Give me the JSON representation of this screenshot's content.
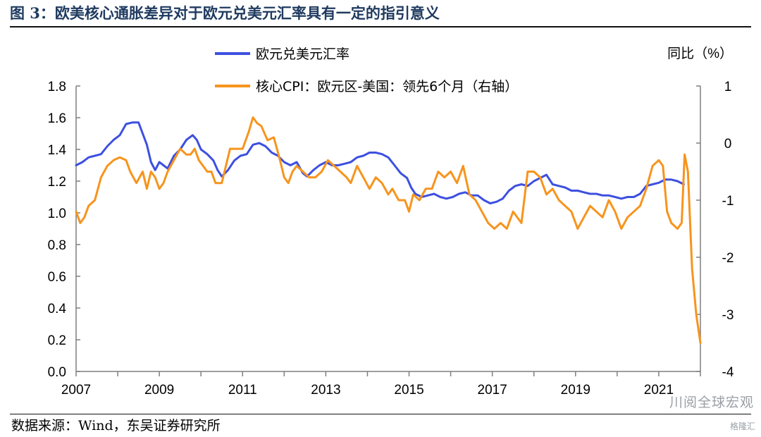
{
  "figure": {
    "title": "图 3：欧美核心通胀差异对于欧元兑美元汇率具有一定的指引意义",
    "source": "数据来源：Wind，东吴证券研究所",
    "watermark": "川阅全球宏观",
    "watermark_small": "格隆汇"
  },
  "chart_data": {
    "type": "line",
    "title": "",
    "xlabel": "",
    "ylabel": "",
    "y2label": "同比（%）",
    "xlim": [
      2007,
      2022
    ],
    "ylim": [
      0,
      1.8
    ],
    "y2lim": [
      -4,
      1
    ],
    "x_ticks": [
      "2007",
      "2009",
      "2011",
      "2013",
      "2015",
      "2017",
      "2019",
      "2021"
    ],
    "y_ticks": [
      "0.0",
      "0.2",
      "0.4",
      "0.6",
      "0.8",
      "1.0",
      "1.2",
      "1.4",
      "1.6",
      "1.8"
    ],
    "y2_ticks": [
      "-4",
      "-3",
      "-2",
      "-1",
      "0",
      "1"
    ],
    "legend_position": "top-center",
    "grid": false,
    "series": [
      {
        "name": "欧元兑美元汇率",
        "axis": "left",
        "color": "#3d50e0",
        "x": [
          2007.0,
          2007.15,
          2007.3,
          2007.45,
          2007.6,
          2007.75,
          2007.9,
          2008.05,
          2008.2,
          2008.35,
          2008.5,
          2008.6,
          2008.7,
          2008.8,
          2008.9,
          2009.0,
          2009.1,
          2009.2,
          2009.35,
          2009.5,
          2009.65,
          2009.8,
          2009.9,
          2010.0,
          2010.15,
          2010.3,
          2010.4,
          2010.5,
          2010.65,
          2010.8,
          2010.95,
          2011.1,
          2011.25,
          2011.4,
          2011.55,
          2011.7,
          2011.85,
          2012.0,
          2012.15,
          2012.3,
          2012.45,
          2012.55,
          2012.7,
          2012.85,
          2013.0,
          2013.15,
          2013.3,
          2013.45,
          2013.6,
          2013.75,
          2013.9,
          2014.05,
          2014.2,
          2014.35,
          2014.5,
          2014.65,
          2014.8,
          2014.95,
          2015.05,
          2015.15,
          2015.3,
          2015.45,
          2015.6,
          2015.75,
          2015.9,
          2016.05,
          2016.2,
          2016.35,
          2016.5,
          2016.65,
          2016.8,
          2016.95,
          2017.1,
          2017.25,
          2017.4,
          2017.55,
          2017.7,
          2017.85,
          2018.0,
          2018.15,
          2018.3,
          2018.45,
          2018.6,
          2018.75,
          2018.9,
          2019.05,
          2019.2,
          2019.35,
          2019.5,
          2019.65,
          2019.8,
          2019.95,
          2020.1,
          2020.25,
          2020.4,
          2020.55,
          2020.7,
          2020.85,
          2021.0,
          2021.15,
          2021.3,
          2021.45,
          2021.6
        ],
        "values": [
          1.3,
          1.32,
          1.35,
          1.36,
          1.37,
          1.42,
          1.46,
          1.49,
          1.56,
          1.57,
          1.57,
          1.5,
          1.43,
          1.32,
          1.27,
          1.32,
          1.3,
          1.28,
          1.36,
          1.4,
          1.46,
          1.49,
          1.46,
          1.4,
          1.37,
          1.33,
          1.27,
          1.23,
          1.27,
          1.33,
          1.36,
          1.37,
          1.43,
          1.44,
          1.42,
          1.38,
          1.36,
          1.32,
          1.3,
          1.32,
          1.25,
          1.23,
          1.27,
          1.3,
          1.32,
          1.3,
          1.3,
          1.31,
          1.32,
          1.35,
          1.36,
          1.38,
          1.38,
          1.37,
          1.35,
          1.3,
          1.25,
          1.22,
          1.16,
          1.12,
          1.1,
          1.11,
          1.12,
          1.1,
          1.09,
          1.1,
          1.12,
          1.13,
          1.11,
          1.11,
          1.08,
          1.06,
          1.07,
          1.09,
          1.14,
          1.17,
          1.18,
          1.17,
          1.2,
          1.22,
          1.24,
          1.18,
          1.17,
          1.16,
          1.14,
          1.14,
          1.13,
          1.12,
          1.12,
          1.11,
          1.11,
          1.1,
          1.09,
          1.1,
          1.1,
          1.12,
          1.17,
          1.18,
          1.19,
          1.21,
          1.21,
          1.2,
          1.18
        ]
      },
      {
        "name": "核心CPI：欧元区-美国：领先6个月（右轴）",
        "axis": "right",
        "color": "#f7941d",
        "x": [
          2007.0,
          2007.1,
          2007.2,
          2007.3,
          2007.45,
          2007.6,
          2007.75,
          2007.9,
          2008.05,
          2008.2,
          2008.3,
          2008.45,
          2008.6,
          2008.7,
          2008.8,
          2008.9,
          2009.0,
          2009.1,
          2009.2,
          2009.35,
          2009.5,
          2009.65,
          2009.75,
          2009.85,
          2009.95,
          2010.05,
          2010.15,
          2010.25,
          2010.35,
          2010.5,
          2010.6,
          2010.7,
          2010.85,
          2011.0,
          2011.15,
          2011.25,
          2011.35,
          2011.45,
          2011.6,
          2011.75,
          2011.9,
          2012.0,
          2012.1,
          2012.2,
          2012.3,
          2012.45,
          2012.6,
          2012.75,
          2012.9,
          2013.05,
          2013.2,
          2013.35,
          2013.5,
          2013.6,
          2013.75,
          2013.9,
          2014.05,
          2014.2,
          2014.35,
          2014.5,
          2014.6,
          2014.75,
          2014.9,
          2015.0,
          2015.1,
          2015.25,
          2015.4,
          2015.55,
          2015.7,
          2015.85,
          2016.0,
          2016.15,
          2016.3,
          2016.45,
          2016.6,
          2016.75,
          2016.9,
          2017.05,
          2017.2,
          2017.35,
          2017.5,
          2017.6,
          2017.7,
          2017.85,
          2018.0,
          2018.15,
          2018.3,
          2018.45,
          2018.6,
          2018.75,
          2018.9,
          2019.05,
          2019.2,
          2019.35,
          2019.5,
          2019.65,
          2019.8,
          2019.95,
          2020.1,
          2020.25,
          2020.4,
          2020.55,
          2020.7,
          2020.85,
          2021.0,
          2021.1,
          2021.2,
          2021.3,
          2021.45,
          2021.55,
          2021.62,
          2021.7,
          2021.8,
          2021.9,
          2022.0
        ],
        "values": [
          -1.2,
          -1.4,
          -1.3,
          -1.1,
          -1.0,
          -0.6,
          -0.4,
          -0.3,
          -0.25,
          -0.3,
          -0.5,
          -0.7,
          -0.5,
          -0.8,
          -0.5,
          -0.6,
          -0.8,
          -0.7,
          -0.5,
          -0.3,
          -0.1,
          -0.2,
          -0.2,
          -0.1,
          -0.3,
          -0.4,
          -0.5,
          -0.5,
          -0.7,
          -0.7,
          -0.4,
          -0.1,
          -0.1,
          -0.1,
          0.2,
          0.45,
          0.35,
          0.3,
          0.05,
          0.1,
          -0.3,
          -0.6,
          -0.7,
          -0.5,
          -0.4,
          -0.5,
          -0.6,
          -0.6,
          -0.5,
          -0.3,
          -0.4,
          -0.5,
          -0.6,
          -0.7,
          -0.4,
          -0.6,
          -0.8,
          -0.6,
          -0.7,
          -0.9,
          -0.8,
          -1.0,
          -1.0,
          -1.2,
          -0.9,
          -1.0,
          -0.8,
          -0.8,
          -0.5,
          -0.6,
          -0.5,
          -0.7,
          -0.4,
          -0.9,
          -1.0,
          -1.2,
          -1.4,
          -1.5,
          -1.4,
          -1.5,
          -1.2,
          -1.3,
          -1.4,
          -0.5,
          -0.5,
          -0.6,
          -0.9,
          -0.8,
          -1.0,
          -1.1,
          -1.2,
          -1.5,
          -1.3,
          -1.1,
          -1.2,
          -1.3,
          -1.0,
          -1.2,
          -1.5,
          -1.3,
          -1.2,
          -1.1,
          -0.8,
          -0.4,
          -0.3,
          -0.4,
          -1.2,
          -1.4,
          -1.5,
          -1.4,
          -0.2,
          -0.5,
          -2.2,
          -3.0,
          -3.5
        ]
      }
    ]
  }
}
